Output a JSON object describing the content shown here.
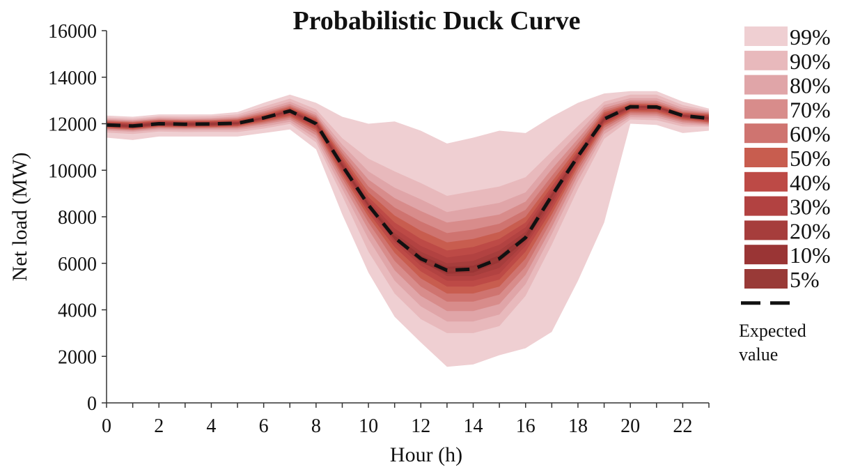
{
  "chart_data": {
    "type": "area",
    "title": "Probabilistic Duck Curve",
    "xlabel": "Hour (h)",
    "ylabel": "Net load  (MW)",
    "xlim": [
      0,
      23
    ],
    "ylim": [
      0,
      16000
    ],
    "x_ticks": [
      0,
      2,
      4,
      6,
      8,
      10,
      12,
      14,
      16,
      18,
      20,
      22
    ],
    "y_ticks": [
      0,
      2000,
      4000,
      6000,
      8000,
      10000,
      12000,
      14000,
      16000
    ],
    "grid": false,
    "legend_position": "right",
    "x": [
      0,
      1,
      2,
      3,
      4,
      5,
      6,
      7,
      8,
      9,
      10,
      11,
      12,
      13,
      14,
      15,
      16,
      17,
      18,
      19,
      20,
      21,
      22,
      23
    ],
    "expected_value": {
      "name": "Expected value",
      "values": [
        11950,
        11900,
        12000,
        11980,
        11990,
        12020,
        12250,
        12550,
        12000,
        10200,
        8500,
        7100,
        6200,
        5700,
        5750,
        6200,
        7100,
        8900,
        10600,
        12200,
        12730,
        12720,
        12350,
        12230
      ]
    },
    "intervals": [
      {
        "name": "99%",
        "color": "#efcfd2",
        "upper": [
          12350,
          12300,
          12400,
          12400,
          12400,
          12500,
          12900,
          13250,
          12900,
          12300,
          12000,
          12100,
          11700,
          11150,
          11400,
          11700,
          11600,
          12300,
          12900,
          13300,
          13400,
          13400,
          12950,
          12650
        ],
        "lower": [
          11400,
          11300,
          11450,
          11450,
          11450,
          11450,
          11600,
          11750,
          10900,
          8100,
          5600,
          3700,
          2600,
          1550,
          1650,
          2050,
          2350,
          3050,
          5250,
          7750,
          12000,
          11950,
          11600,
          11700
        ]
      },
      {
        "name": "90%",
        "color": "#e8b9bc",
        "upper": [
          12270,
          12220,
          12320,
          12310,
          12320,
          12400,
          12740,
          13080,
          12620,
          11380,
          10500,
          9950,
          9450,
          8900,
          9100,
          9300,
          9700,
          10800,
          11900,
          12950,
          13250,
          13250,
          12800,
          12570
        ],
        "lower": [
          11620,
          11560,
          11660,
          11640,
          11650,
          11640,
          11790,
          11990,
          11200,
          8900,
          6500,
          4700,
          3600,
          3000,
          3000,
          3300,
          4600,
          6800,
          9200,
          11350,
          12180,
          12150,
          11880,
          11870
        ]
      },
      {
        "name": "80%",
        "color": "#e0a5a8",
        "upper": [
          12210,
          12160,
          12260,
          12240,
          12250,
          12320,
          12620,
          12950,
          12470,
          11100,
          9950,
          9250,
          8750,
          8200,
          8400,
          8600,
          9050,
          10400,
          11600,
          12800,
          13100,
          13100,
          12690,
          12520
        ],
        "lower": [
          11700,
          11650,
          11740,
          11720,
          11730,
          11730,
          11880,
          12080,
          11350,
          9200,
          7050,
          5250,
          4150,
          3500,
          3500,
          3800,
          5100,
          7250,
          9550,
          11550,
          12280,
          12260,
          11980,
          11920
        ]
      },
      {
        "name": "70%",
        "color": "#d88c8b",
        "upper": [
          12170,
          12120,
          12210,
          12190,
          12200,
          12260,
          12530,
          12850,
          12370,
          10900,
          9600,
          8800,
          8250,
          7750,
          7900,
          8100,
          8650,
          10050,
          11350,
          12680,
          13000,
          12990,
          12600,
          12480
        ],
        "lower": [
          11750,
          11700,
          11800,
          11780,
          11790,
          11800,
          11970,
          12180,
          11500,
          9450,
          7450,
          5700,
          4600,
          3950,
          3950,
          4250,
          5500,
          7550,
          9800,
          11700,
          12370,
          12350,
          12060,
          11970
        ]
      },
      {
        "name": "60%",
        "color": "#cf7470",
        "upper": [
          12130,
          12080,
          12170,
          12150,
          12160,
          12210,
          12460,
          12770,
          12290,
          10750,
          9300,
          8400,
          7800,
          7300,
          7450,
          7700,
          8300,
          9750,
          11150,
          12580,
          12920,
          12900,
          12530,
          12440
        ],
        "lower": [
          11790,
          11740,
          11840,
          11820,
          11830,
          11850,
          12030,
          12260,
          11620,
          9650,
          7750,
          6100,
          5000,
          4350,
          4350,
          4650,
          5850,
          7850,
          10000,
          11820,
          12450,
          12430,
          12130,
          12020
        ]
      },
      {
        "name": "50%",
        "color": "#c85d4f",
        "upper": [
          12100,
          12050,
          12140,
          12120,
          12130,
          12170,
          12400,
          12710,
          12220,
          10620,
          9050,
          8050,
          7400,
          6900,
          7050,
          7350,
          8000,
          9500,
          10980,
          12490,
          12860,
          12840,
          12480,
          12400
        ],
        "lower": [
          11820,
          11770,
          11870,
          11850,
          11860,
          11890,
          12090,
          12330,
          11720,
          9800,
          8000,
          6450,
          5350,
          4700,
          4700,
          5000,
          6200,
          8100,
          10170,
          11920,
          12520,
          12500,
          12190,
          12060
        ]
      },
      {
        "name": "40%",
        "color": "#bd4a46",
        "upper": [
          12070,
          12020,
          12110,
          12090,
          12100,
          12130,
          12350,
          12660,
          12160,
          10500,
          8850,
          7750,
          7050,
          6550,
          6700,
          7050,
          7750,
          9300,
          10840,
          12410,
          12810,
          12800,
          12440,
          12360
        ],
        "lower": [
          11850,
          11800,
          11900,
          11880,
          11890,
          11920,
          12140,
          12390,
          11800,
          9920,
          8180,
          6700,
          5650,
          5000,
          5000,
          5300,
          6500,
          8300,
          10300,
          12000,
          12580,
          12570,
          12240,
          12100
        ]
      },
      {
        "name": "30%",
        "color": "#b24241",
        "upper": [
          12040,
          11990,
          12080,
          12060,
          12070,
          12100,
          12310,
          12620,
          12110,
          10400,
          8700,
          7500,
          6750,
          6250,
          6400,
          6800,
          7550,
          9150,
          10730,
          12350,
          12780,
          12770,
          12410,
          12330
        ],
        "lower": [
          11870,
          11820,
          11920,
          11900,
          11910,
          11950,
          12180,
          12440,
          11870,
          10020,
          8320,
          6900,
          5900,
          5250,
          5250,
          5550,
          6750,
          8500,
          10420,
          12060,
          12630,
          12620,
          12280,
          12130
        ]
      },
      {
        "name": "20%",
        "color": "#a63d3c",
        "upper": [
          12010,
          11960,
          12060,
          12040,
          12050,
          12070,
          12280,
          12590,
          12070,
          10320,
          8600,
          7300,
          6500,
          6000,
          6100,
          6550,
          7350,
          9030,
          10660,
          12300,
          12760,
          12750,
          12380,
          12290
        ],
        "lower": [
          11890,
          11840,
          11940,
          11920,
          11930,
          11970,
          12210,
          12490,
          11930,
          10100,
          8420,
          7050,
          6100,
          5450,
          5450,
          5800,
          6900,
          8650,
          10520,
          12110,
          12680,
          12670,
          12310,
          12170
        ]
      },
      {
        "name": "10%",
        "color": "#9a3535",
        "upper": [
          11990,
          11940,
          12040,
          12020,
          12030,
          12050,
          12260,
          12570,
          12040,
          10260,
          8540,
          7180,
          6350,
          5850,
          5900,
          6350,
          7220,
          8960,
          10620,
          12260,
          12750,
          12740,
          12370,
          12260
        ],
        "lower": [
          11910,
          11860,
          11960,
          11940,
          11950,
          11990,
          12230,
          12530,
          11970,
          10140,
          8460,
          7020,
          6050,
          5550,
          5600,
          6050,
          6980,
          8840,
          10580,
          12140,
          12710,
          12700,
          12330,
          12200
        ]
      },
      {
        "name": "5%",
        "color": "#993a37",
        "upper": [
          11970,
          11920,
          12020,
          12000,
          12010,
          12040,
          12260,
          12560,
          12020,
          10230,
          8520,
          7130,
          6250,
          5760,
          5810,
          6250,
          7140,
          8920,
          10610,
          12230,
          12740,
          12730,
          12360,
          12240
        ],
        "lower": [
          11930,
          11880,
          11980,
          11960,
          11970,
          12000,
          12240,
          12540,
          11980,
          10170,
          8480,
          7070,
          6150,
          5640,
          5690,
          6150,
          7060,
          8880,
          10590,
          12170,
          12720,
          12710,
          12340,
          12220
        ]
      }
    ]
  }
}
